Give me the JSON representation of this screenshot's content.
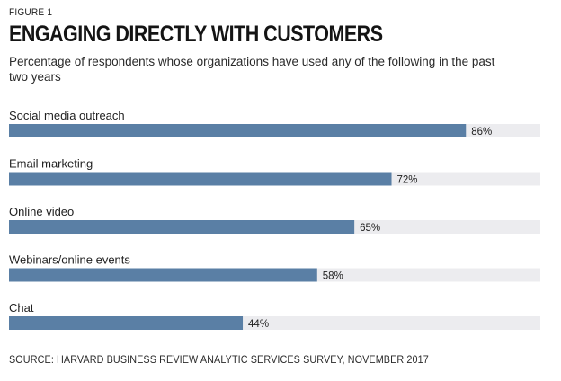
{
  "header": {
    "figure_label": "FIGURE 1",
    "title": "ENGAGING DIRECTLY WITH CUSTOMERS",
    "subtitle": "Percentage of respondents whose organizations have used any of the following in the past two years"
  },
  "footer": {
    "source": "SOURCE: HARVARD BUSINESS REVIEW ANALYTIC SERVICES SURVEY, NOVEMBER 2017"
  },
  "colors": {
    "bar": "#5a7fa5",
    "track": "#ececef"
  },
  "chart_data": {
    "type": "bar",
    "orientation": "horizontal",
    "categories": [
      "Social media outreach",
      "Email marketing",
      "Online video",
      "Webinars/online events",
      "Chat"
    ],
    "values": [
      86,
      72,
      65,
      58,
      44
    ],
    "value_labels": [
      "86%",
      "72%",
      "65%",
      "58%",
      "44%"
    ],
    "xlim": [
      0,
      100
    ],
    "grid": false,
    "legend": "none"
  }
}
